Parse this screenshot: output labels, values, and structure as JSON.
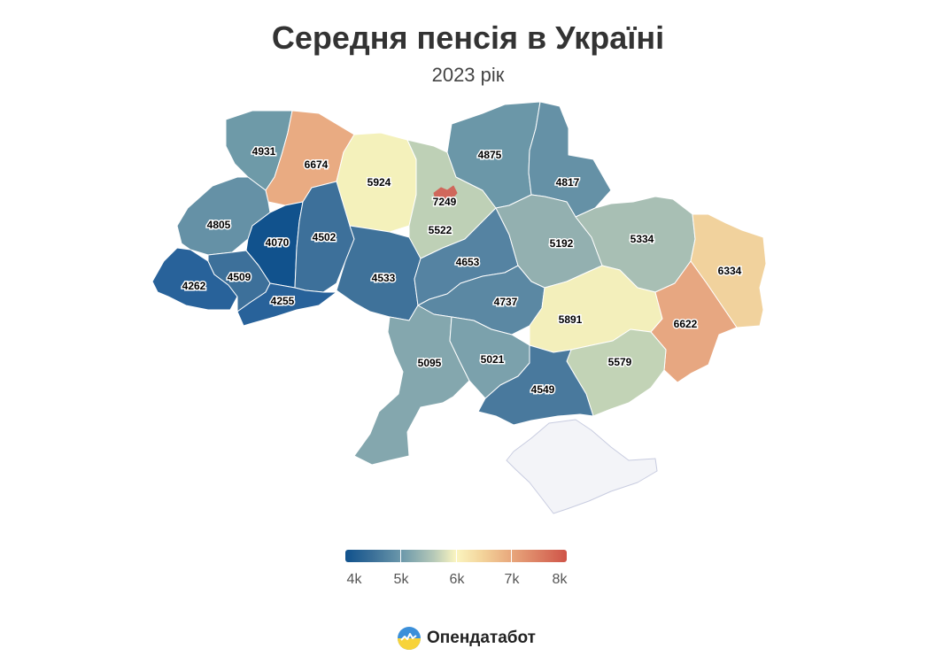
{
  "title": "Середня пенсія в Україні",
  "subtitle": "2023 рік",
  "map": {
    "regions": [
      {
        "id": "volyn",
        "value": 4931,
        "label": "4931",
        "color": "#6e9aa8"
      },
      {
        "id": "rivne",
        "value": 6674,
        "label": "6674",
        "color": "#e9ab82"
      },
      {
        "id": "zhytomyr",
        "value": 5924,
        "label": "5924",
        "color": "#f4f1bb"
      },
      {
        "id": "kyiv-oblast",
        "value": 5522,
        "label": "5522",
        "color": "#bed0b6"
      },
      {
        "id": "kyiv-city",
        "value": 7249,
        "label": "7249",
        "color": "#d0675b"
      },
      {
        "id": "chernihiv",
        "value": 4875,
        "label": "4875",
        "color": "#6b97a8"
      },
      {
        "id": "sumy",
        "value": 4817,
        "label": "4817",
        "color": "#6591a6"
      },
      {
        "id": "lviv",
        "value": 4805,
        "label": "4805",
        "color": "#6591a6"
      },
      {
        "id": "ternopil",
        "value": 4070,
        "label": "4070",
        "color": "#11528d"
      },
      {
        "id": "khmelnytskyi",
        "value": 4502,
        "label": "4502",
        "color": "#3d709a"
      },
      {
        "id": "zakarpattia",
        "value": 4262,
        "label": "4262",
        "color": "#28629a"
      },
      {
        "id": "ivano-frankivsk",
        "value": 4509,
        "label": "4509",
        "color": "#3d709a"
      },
      {
        "id": "chernivtsi",
        "value": 4255,
        "label": "4255",
        "color": "#28629a"
      },
      {
        "id": "vinnytsia",
        "value": 4533,
        "label": "4533",
        "color": "#3f729a"
      },
      {
        "id": "cherkasy",
        "value": 4653,
        "label": "4653",
        "color": "#5583a2"
      },
      {
        "id": "poltava",
        "value": 5192,
        "label": "5192",
        "color": "#93b0b0"
      },
      {
        "id": "kharkiv",
        "value": 5334,
        "label": "5334",
        "color": "#a8bfb4"
      },
      {
        "id": "luhansk",
        "value": 6334,
        "label": "6334",
        "color": "#f1d29d"
      },
      {
        "id": "kirovohrad",
        "value": 4737,
        "label": "4737",
        "color": "#5b88a3"
      },
      {
        "id": "dnipropetrovsk",
        "value": 5891,
        "label": "5891",
        "color": "#f3efbb"
      },
      {
        "id": "donetsk",
        "value": 6622,
        "label": "6622",
        "color": "#e7a781"
      },
      {
        "id": "odesa",
        "value": 5095,
        "label": "5095",
        "color": "#84a7ae"
      },
      {
        "id": "mykolaiv",
        "value": 5021,
        "label": "5021",
        "color": "#7ba1ac"
      },
      {
        "id": "zaporizhzhia",
        "value": 5579,
        "label": "5579",
        "color": "#c2d3b6"
      },
      {
        "id": "kherson",
        "value": 4549,
        "label": "4549",
        "color": "#49799d"
      },
      {
        "id": "crimea",
        "value": null,
        "label": "",
        "color": "#f3f4f8"
      }
    ]
  },
  "legend": {
    "ticks": [
      "4k",
      "5k",
      "6k",
      "7k",
      "8k"
    ],
    "min": 4000,
    "max": 8000
  },
  "brand": {
    "name": "Опендатабот"
  }
}
